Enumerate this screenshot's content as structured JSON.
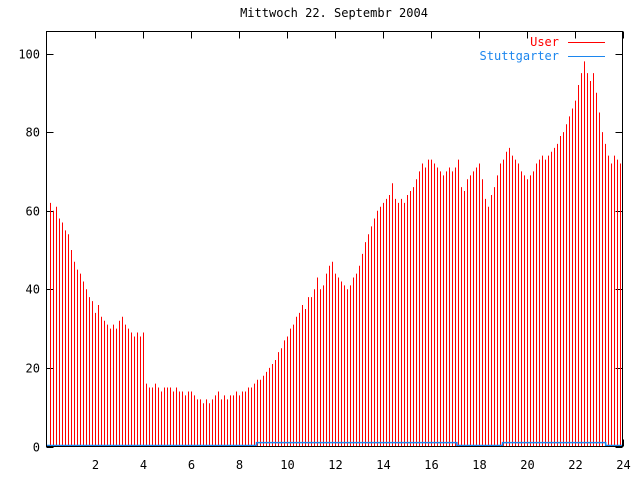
{
  "chart_data": {
    "type": "bar",
    "title": "Mittwoch 22. Septembr 2004",
    "xlabel": "",
    "ylabel": "",
    "xlim": [
      0,
      24
    ],
    "ylim": [
      0,
      100
    ],
    "xticks": [
      2,
      4,
      6,
      8,
      10,
      12,
      14,
      16,
      18,
      20,
      22,
      24
    ],
    "yticks": [
      0,
      20,
      40,
      60,
      80,
      100
    ],
    "grid": "off",
    "legend_position": "top-right-inside",
    "x_step_hours": 0.125,
    "series": [
      {
        "name": "User",
        "style": "impulses",
        "color": "#ff0000",
        "values": [
          61,
          62,
          60,
          61,
          58,
          57,
          55,
          54,
          50,
          47,
          45,
          44,
          42,
          40,
          38,
          37,
          34,
          36,
          33,
          32,
          31,
          30,
          31,
          30,
          32,
          33,
          31,
          30,
          29,
          28,
          29,
          28,
          29,
          16,
          15,
          15,
          16,
          15,
          14,
          15,
          15,
          15,
          14,
          15,
          14,
          14,
          13,
          14,
          14,
          13,
          12,
          12,
          11,
          12,
          11,
          12,
          13,
          14,
          12,
          13,
          12,
          13,
          13,
          14,
          13,
          14,
          14,
          15,
          15,
          16,
          17,
          17,
          18,
          19,
          20,
          21,
          22,
          24,
          25,
          27,
          28,
          30,
          31,
          33,
          34,
          36,
          35,
          38,
          38,
          40,
          43,
          40,
          41,
          44,
          46,
          47,
          44,
          43,
          42,
          41,
          40,
          41,
          43,
          44,
          46,
          49,
          52,
          54,
          56,
          58,
          60,
          61,
          62,
          63,
          64,
          67,
          63,
          62,
          63,
          62,
          64,
          65,
          66,
          68,
          70,
          72,
          71,
          73,
          73,
          72,
          71,
          70,
          69,
          70,
          71,
          70,
          71,
          73,
          66,
          65,
          68,
          69,
          70,
          71,
          72,
          68,
          63,
          61,
          64,
          66,
          69,
          72,
          73,
          75,
          76,
          74,
          73,
          72,
          70,
          69,
          68,
          69,
          70,
          72,
          73,
          74,
          73,
          74,
          75,
          76,
          77,
          79,
          80,
          82,
          84,
          86,
          88,
          92,
          95,
          98,
          95,
          93,
          95,
          90,
          85,
          80,
          77,
          74,
          72,
          74,
          73,
          72,
          70
        ]
      },
      {
        "name": "Stuttgarter",
        "style": "steps",
        "color": "#1c86ee",
        "points": [
          [
            0,
            0
          ],
          [
            8.75,
            0
          ],
          [
            8.75,
            1
          ],
          [
            17.1,
            1
          ],
          [
            17.1,
            0
          ],
          [
            19,
            0
          ],
          [
            19,
            1
          ],
          [
            23.3,
            1
          ],
          [
            23.3,
            0
          ],
          [
            24,
            0
          ]
        ]
      }
    ]
  },
  "legend": {
    "items": [
      {
        "label": "User",
        "color": "#ff0000"
      },
      {
        "label": "Stuttgarter",
        "color": "#1c86ee"
      }
    ]
  },
  "colors": {
    "axis": "#000000",
    "background": "#ffffff",
    "bar": "#ff0000",
    "line": "#1c86ee"
  }
}
